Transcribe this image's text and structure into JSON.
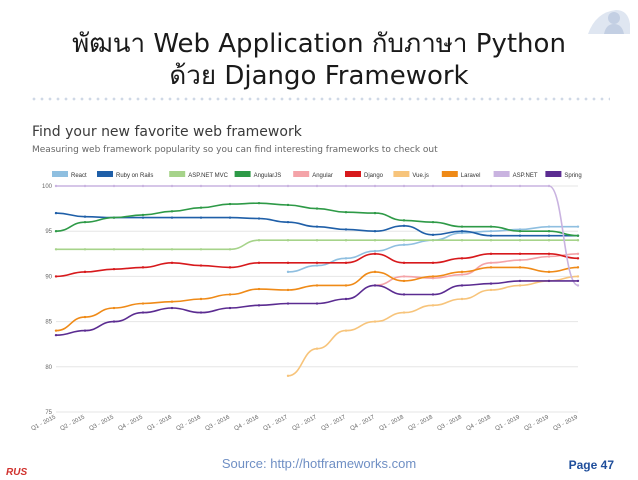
{
  "title_line1": "พัฒนา Web Application กับภาษา Python",
  "title_line2": "ด้วย Django Framework",
  "source": "Source: http://hotframeworks.com",
  "page": "Page 47",
  "logo_text": "RUS",
  "chart_data": {
    "type": "line",
    "title": "Find your new favorite web framework",
    "subtitle": "Measuring web framework popularity so you can find interesting frameworks to check out",
    "x": [
      "Q1 - 2015",
      "Q2 - 2015",
      "Q3 - 2015",
      "Q4 - 2015",
      "Q1 - 2016",
      "Q2 - 2016",
      "Q3 - 2016",
      "Q4 - 2016",
      "Q1 - 2017",
      "Q2 - 2017",
      "Q3 - 2017",
      "Q4 - 2017",
      "Q1 - 2018",
      "Q2 - 2018",
      "Q3 - 2018",
      "Q4 - 2018",
      "Q1 - 2019",
      "Q2 - 2019",
      "Q3 - 2019"
    ],
    "ylim": [
      75,
      100
    ],
    "yticks": [
      75,
      80,
      85,
      90,
      95,
      100
    ],
    "grid": true,
    "legend_position": "top",
    "series": [
      {
        "name": "React",
        "color": "#8fbfe0",
        "values": [
          null,
          null,
          null,
          null,
          null,
          null,
          null,
          null,
          90.5,
          91.2,
          92.0,
          92.8,
          93.5,
          94.0,
          94.8,
          95.0,
          95.2,
          95.5,
          95.5
        ]
      },
      {
        "name": "Ruby on Rails",
        "color": "#1f5fa8",
        "values": [
          97.0,
          96.6,
          96.5,
          96.5,
          96.5,
          96.5,
          96.5,
          96.4,
          96.0,
          95.5,
          95.2,
          95.0,
          95.6,
          94.6,
          95.0,
          94.5,
          94.5,
          94.5,
          94.5
        ]
      },
      {
        "name": "ASP.NET MVC",
        "color": "#a6d38a",
        "values": [
          93.0,
          93.0,
          93.0,
          93.0,
          93.0,
          93.0,
          93.0,
          94.0,
          94.0,
          94.0,
          94.0,
          94.0,
          94.0,
          94.0,
          94.0,
          94.0,
          94.0,
          94.0,
          94.0
        ]
      },
      {
        "name": "AngularJS",
        "color": "#2e9a47",
        "values": [
          95.0,
          96.0,
          96.5,
          96.8,
          97.2,
          97.6,
          98.0,
          98.1,
          97.9,
          97.5,
          97.1,
          97.0,
          96.2,
          96.0,
          95.5,
          95.5,
          95.0,
          95.0,
          94.5
        ]
      },
      {
        "name": "Angular",
        "color": "#f4a3a8",
        "values": [
          null,
          null,
          null,
          null,
          null,
          null,
          null,
          null,
          null,
          null,
          null,
          89.0,
          90.0,
          89.8,
          90.2,
          91.5,
          91.8,
          92.2,
          92.5
        ]
      },
      {
        "name": "Django",
        "color": "#d7191c",
        "values": [
          90.0,
          90.5,
          90.8,
          91.0,
          91.5,
          91.2,
          91.0,
          91.5,
          91.5,
          91.5,
          91.5,
          92.5,
          91.5,
          91.5,
          92.0,
          92.5,
          92.5,
          92.5,
          92.0
        ]
      },
      {
        "name": "Vue.js",
        "color": "#f7c47b",
        "values": [
          null,
          null,
          null,
          null,
          null,
          null,
          null,
          null,
          79.0,
          82.0,
          84.0,
          85.0,
          86.0,
          86.8,
          87.5,
          88.5,
          89.0,
          89.5,
          90.0
        ]
      },
      {
        "name": "Laravel",
        "color": "#ef8a17",
        "values": [
          84.0,
          85.5,
          86.5,
          87.0,
          87.2,
          87.5,
          88.0,
          88.6,
          88.5,
          89.0,
          89.0,
          90.5,
          89.5,
          90.0,
          90.5,
          91.0,
          91.0,
          90.5,
          91.0
        ]
      },
      {
        "name": "ASP.NET",
        "color": "#c9b3e0",
        "values": [
          100.0,
          100.0,
          100.0,
          100.0,
          100.0,
          100.0,
          100.0,
          100.0,
          100.0,
          100.0,
          100.0,
          100.0,
          100.0,
          100.0,
          100.0,
          100.0,
          100.0,
          100.0,
          89.0
        ]
      },
      {
        "name": "Spring",
        "color": "#5b2c91",
        "values": [
          83.5,
          84.0,
          85.0,
          86.0,
          86.5,
          86.0,
          86.5,
          86.8,
          87.0,
          87.0,
          87.5,
          89.0,
          88.0,
          88.0,
          89.0,
          89.2,
          89.5,
          89.5,
          89.5
        ]
      }
    ]
  }
}
